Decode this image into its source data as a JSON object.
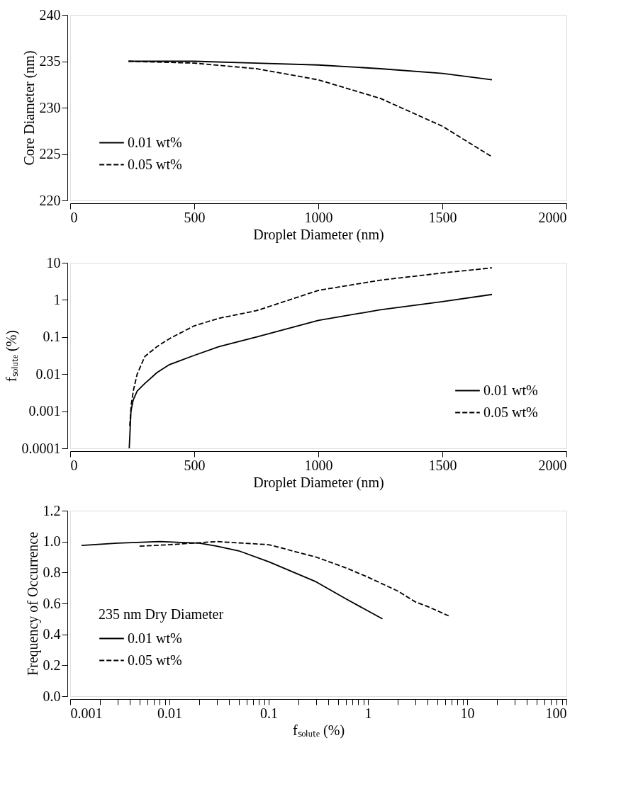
{
  "chart_data": [
    {
      "type": "line",
      "xlabel": "Droplet Diameter (nm)",
      "ylabel": "Core Diameter (nm)",
      "xlim": [
        0,
        2000
      ],
      "xticks": [
        0,
        500,
        1000,
        1500,
        2000
      ],
      "ylim": [
        220,
        240
      ],
      "yticks": [
        220,
        225,
        230,
        235,
        240
      ],
      "legend": "bottom left",
      "grid": false,
      "x": [
        235,
        500,
        750,
        1000,
        1250,
        1500,
        1700
      ],
      "series": [
        {
          "name": "0.01 wt%",
          "color": "#000000",
          "line_style": "solid",
          "values": [
            235,
            235.0,
            234.8,
            234.6,
            234.2,
            233.7,
            233.0
          ]
        },
        {
          "name": "0.05 wt%",
          "color": "#000000",
          "line_style": "dashed",
          "values": [
            235,
            234.8,
            234.2,
            233.0,
            231.0,
            228.0,
            224.7
          ]
        }
      ]
    },
    {
      "type": "line",
      "xlabel": "Droplet Diameter (nm)",
      "ylabel": "fₛₒₗᵤₜₑ (%)",
      "xlim": [
        0,
        2000
      ],
      "xticks": [
        0,
        500,
        1000,
        1500,
        2000
      ],
      "ylim": [
        0.0001,
        10
      ],
      "yticks": [
        0.0001,
        0.001,
        0.01,
        0.1,
        1,
        10
      ],
      "log": "y",
      "legend": "bottom right",
      "grid": false,
      "series": [
        {
          "name": "0.01 wt%",
          "color": "#000000",
          "line_style": "solid",
          "x": [
            238,
            245,
            254,
            270,
            301,
            350,
            400,
            500,
            600,
            750,
            1000,
            1250,
            1500,
            1700
          ],
          "values": [
            0.0001,
            0.001,
            0.002,
            0.0035,
            0.0056,
            0.011,
            0.018,
            0.032,
            0.055,
            0.1,
            0.28,
            0.54,
            0.9,
            1.4
          ]
        },
        {
          "name": "0.05 wt%",
          "color": "#000000",
          "line_style": "dashed",
          "x": [
            240,
            246,
            255,
            270,
            301,
            350,
            400,
            500,
            600,
            750,
            1000,
            1250,
            1500,
            1700
          ],
          "values": [
            0.0004,
            0.0015,
            0.0037,
            0.01,
            0.03,
            0.055,
            0.09,
            0.2,
            0.32,
            0.51,
            1.8,
            3.4,
            5.3,
            7.3
          ]
        }
      ]
    },
    {
      "type": "line",
      "xlabel": "fₛₒₗᵤₜₑ (%)",
      "ylabel": "Frequency of Occurrence",
      "legend_title": "235 nm Dry Diameter",
      "log": "x",
      "xlim": [
        0.001,
        100
      ],
      "xticks": [
        0.001,
        {
          "value": 0.002,
          "label": null
        },
        {
          "value": 0.003,
          "label": null
        },
        {
          "value": 0.004,
          "label": null
        },
        {
          "value": 0.005,
          "label": null
        },
        {
          "value": 0.006,
          "label": null
        },
        {
          "value": 0.007,
          "label": null
        },
        {
          "value": 0.008,
          "label": null
        },
        {
          "value": 0.009,
          "label": null
        },
        0.01,
        {
          "value": 0.02,
          "label": null
        },
        {
          "value": 0.03,
          "label": null
        },
        {
          "value": 0.04,
          "label": null
        },
        {
          "value": 0.05,
          "label": null
        },
        {
          "value": 0.06,
          "label": null
        },
        {
          "value": 0.07,
          "label": null
        },
        {
          "value": 0.08,
          "label": null
        },
        {
          "value": 0.09,
          "label": null
        },
        0.1,
        {
          "value": 0.2,
          "label": null
        },
        {
          "value": 0.3,
          "label": null
        },
        {
          "value": 0.4,
          "label": null
        },
        {
          "value": 0.5,
          "label": null
        },
        {
          "value": 0.6,
          "label": null
        },
        {
          "value": 0.7,
          "label": null
        },
        {
          "value": 0.8,
          "label": null
        },
        {
          "value": 0.9,
          "label": null
        },
        1,
        {
          "value": 2,
          "label": null
        },
        {
          "value": 3,
          "label": null
        },
        {
          "value": 4,
          "label": null
        },
        {
          "value": 5,
          "label": null
        },
        {
          "value": 6,
          "label": null
        },
        {
          "value": 7,
          "label": null
        },
        {
          "value": 8,
          "label": null
        },
        {
          "value": 9,
          "label": null
        },
        10,
        {
          "value": 20,
          "label": null
        },
        {
          "value": 30,
          "label": null
        },
        {
          "value": 40,
          "label": null
        },
        {
          "value": 50,
          "label": null
        },
        {
          "value": 60,
          "label": null
        },
        {
          "value": 70,
          "label": null
        },
        {
          "value": 80,
          "label": null
        },
        {
          "value": 90,
          "label": null
        },
        100
      ],
      "ylim": [
        0,
        1.2
      ],
      "yticks": [
        {
          "value": 0,
          "label": "0.0"
        },
        {
          "value": 0.2,
          "label": "0.2"
        },
        {
          "value": 0.4,
          "label": "0.4"
        },
        {
          "value": 0.6,
          "label": "0.6"
        },
        {
          "value": 0.8,
          "label": "0.8"
        },
        {
          "value": 1,
          "label": "1.0"
        },
        {
          "value": 1.2,
          "label": "1.2"
        }
      ],
      "legend": "bottom left",
      "grid": false,
      "series": [
        {
          "name": "0.01 wt%",
          "color": "#000000",
          "line_style": "solid",
          "x": [
            0.0013,
            0.003,
            0.008,
            0.02,
            0.03,
            0.05,
            0.1,
            0.3,
            0.6,
            1.4
          ],
          "values": [
            0.975,
            0.99,
            1.0,
            0.99,
            0.97,
            0.94,
            0.87,
            0.74,
            0.63,
            0.5
          ]
        },
        {
          "name": "0.05 wt%",
          "color": "#000000",
          "line_style": "dashed",
          "x": [
            0.005,
            0.01,
            0.03,
            0.1,
            0.3,
            0.6,
            1,
            2,
            3,
            4,
            6.5
          ],
          "values": [
            0.97,
            0.98,
            1.0,
            0.98,
            0.9,
            0.83,
            0.77,
            0.68,
            0.61,
            0.58,
            0.52
          ]
        }
      ]
    }
  ]
}
